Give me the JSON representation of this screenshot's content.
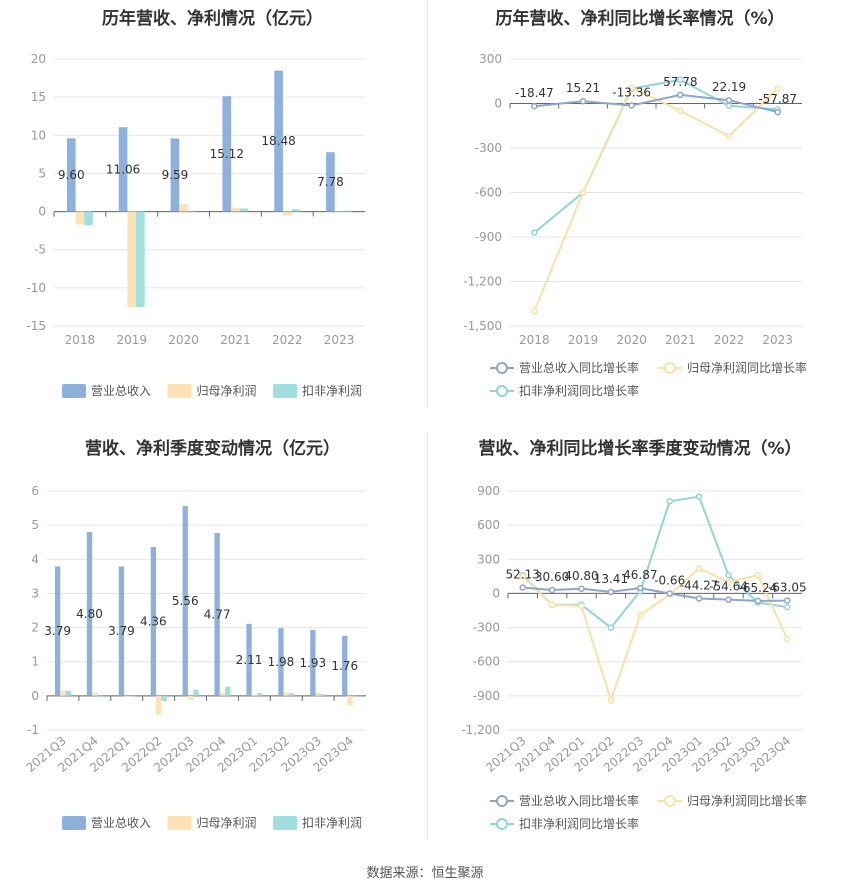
{
  "source": "数据来源：恒生聚源",
  "colors": {
    "revenue": "#8eb0dc",
    "netprofit": "#fde3b3",
    "deducted": "#9fdfe0",
    "rev_line": "#8ea4cf",
    "np_line": "#fde0a5",
    "ded_line": "#8fd6d9",
    "axis_text": "#999999",
    "grid": "#e5e5e5"
  },
  "chart_data": [
    {
      "type": "bar",
      "title": "历年营收、净利情况（亿元）",
      "categories": [
        "2018",
        "2019",
        "2020",
        "2021",
        "2022",
        "2023"
      ],
      "series": [
        {
          "name": "营业总收入",
          "values": [
            9.6,
            11.06,
            9.59,
            15.12,
            18.48,
            7.78
          ]
        },
        {
          "name": "归母净利润",
          "values": [
            -1.7,
            -12.5,
            1.0,
            0.5,
            -0.5,
            0.05
          ]
        },
        {
          "name": "扣非净利润",
          "values": [
            -1.8,
            -12.5,
            0.1,
            0.4,
            0.3,
            0.1
          ]
        }
      ],
      "data_labels": [
        "9.60",
        "11.06",
        "9.59",
        "15.12",
        "18.48",
        "7.78"
      ],
      "ylim": [
        -15,
        20
      ],
      "yticks": [
        "-15",
        "-10",
        "-5",
        "0",
        "5",
        "10",
        "15",
        "20"
      ],
      "legend_position": "bottom"
    },
    {
      "type": "line",
      "title": "历年营收、净利同比增长率情况（%）",
      "categories": [
        "2018",
        "2019",
        "2020",
        "2021",
        "2022",
        "2023"
      ],
      "series": [
        {
          "name": "营业总收入同比增长率",
          "values": [
            -18.47,
            15.21,
            -13.36,
            57.78,
            22.19,
            -57.87
          ]
        },
        {
          "name": "归母净利润同比增长率",
          "values": [
            -1400,
            -600,
            108,
            -50,
            -220,
            100
          ]
        },
        {
          "name": "扣非净利润同比增长率",
          "values": [
            -870,
            -600,
            100,
            160,
            -15,
            -40
          ]
        }
      ],
      "data_labels": [
        "-18.47",
        "15.21",
        "-13.36",
        "57.78",
        "22.19",
        "-57.87"
      ],
      "ylim": [
        -1500,
        300
      ],
      "yticks": [
        "-1,500",
        "-1,200",
        "-900",
        "-600",
        "-300",
        "0",
        "300"
      ],
      "legend_position": "bottom"
    },
    {
      "type": "bar",
      "title": "营收、净利季度变动情况（亿元）",
      "categories": [
        "2021Q3",
        "2021Q4",
        "2022Q1",
        "2022Q2",
        "2022Q3",
        "2022Q4",
        "2023Q1",
        "2023Q2",
        "2023Q3",
        "2023Q4"
      ],
      "series": [
        {
          "name": "营业总收入",
          "values": [
            3.79,
            4.8,
            3.79,
            4.36,
            5.56,
            4.77,
            2.11,
            1.98,
            1.93,
            1.76
          ]
        },
        {
          "name": "归母净利润",
          "values": [
            0.15,
            0.1,
            0.0,
            -0.55,
            -0.12,
            0.1,
            0.02,
            0.1,
            0.1,
            -0.28
          ]
        },
        {
          "name": "扣非净利润",
          "values": [
            0.15,
            -0.03,
            0.0,
            -0.15,
            0.18,
            0.27,
            0.08,
            0.08,
            0.05,
            -0.04
          ]
        }
      ],
      "data_labels": [
        "3.79",
        "4.80",
        "3.79",
        "4.36",
        "5.56",
        "4.77",
        "2.11",
        "1.98",
        "1.93",
        "1.76"
      ],
      "ylim": [
        -1,
        6
      ],
      "yticks": [
        "-1",
        "0",
        "1",
        "2",
        "3",
        "4",
        "5",
        "6"
      ],
      "legend_position": "bottom"
    },
    {
      "type": "line",
      "title": "营收、净利同比增长率季度变动情况（%）",
      "categories": [
        "2021Q3",
        "2021Q4",
        "2022Q1",
        "2022Q2",
        "2022Q3",
        "2022Q4",
        "2023Q1",
        "2023Q2",
        "2023Q3",
        "2023Q4"
      ],
      "series": [
        {
          "name": "营业总收入同比增长率",
          "values": [
            52.13,
            30.6,
            40.8,
            13.41,
            46.87,
            -0.66,
            -44.27,
            -54.64,
            -65.24,
            -63.05
          ]
        },
        {
          "name": "归母净利润同比增长率",
          "values": [
            150,
            -100,
            -110,
            -940,
            -190,
            -10,
            220,
            100,
            160,
            -400
          ]
        },
        {
          "name": "扣非净利润同比增长率",
          "values": [
            160,
            -100,
            -100,
            -300,
            20,
            810,
            850,
            160,
            -80,
            -120
          ]
        }
      ],
      "data_labels": [
        "52.13",
        "30.60",
        "40.80",
        "13.41",
        "46.87",
        "-0.66",
        "-44.27",
        "-54.64",
        "-65.24",
        "-63.05"
      ],
      "ylim": [
        -1200,
        900
      ],
      "yticks": [
        "-1,200",
        "-900",
        "-600",
        "-300",
        "0",
        "300",
        "600",
        "900"
      ],
      "legend_position": "bottom"
    }
  ]
}
